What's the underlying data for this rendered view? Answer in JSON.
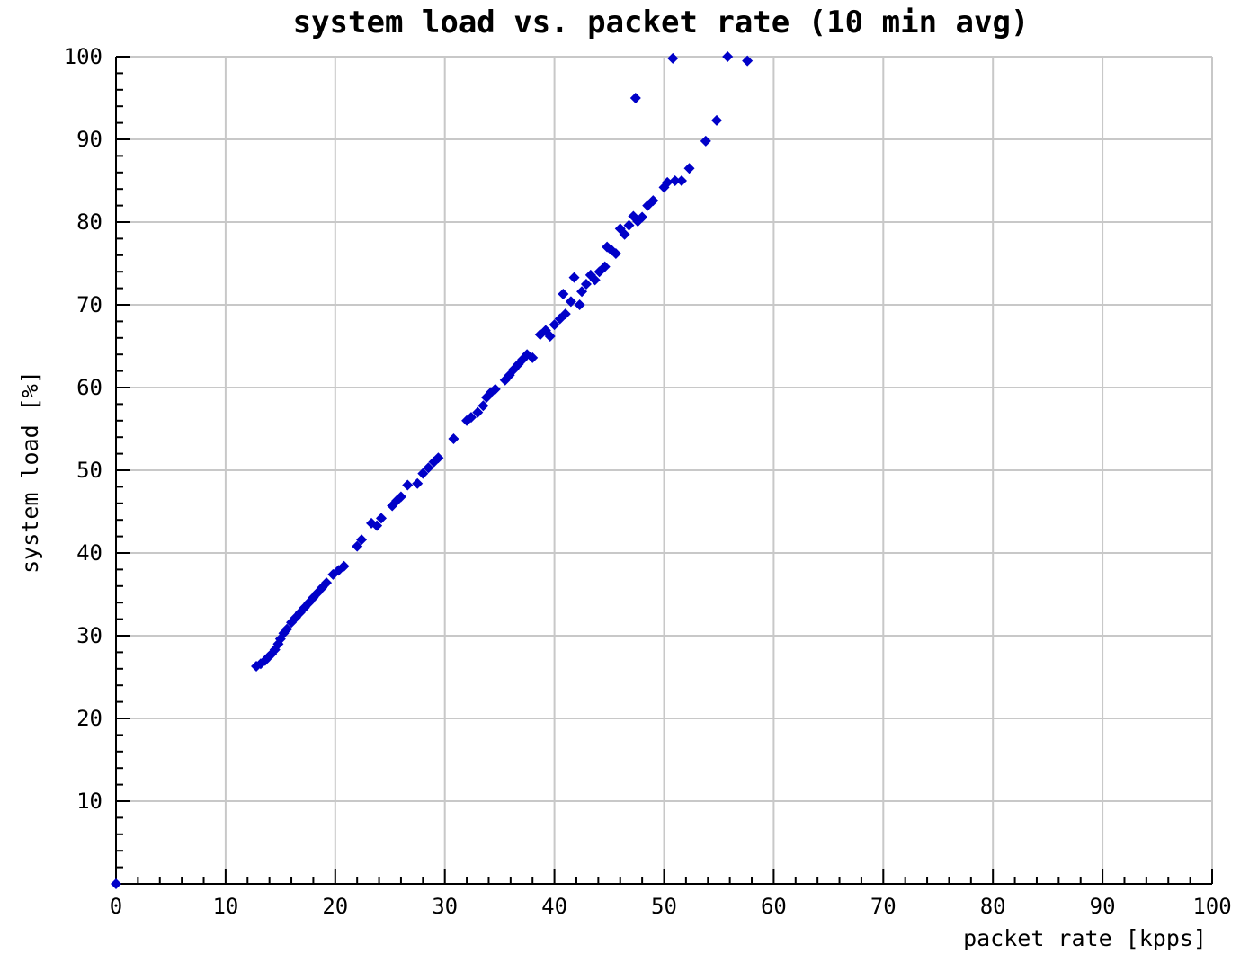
{
  "chart_data": {
    "type": "scatter",
    "title": "system load vs. packet rate (10 min avg)",
    "xlabel": "packet rate [kpps]",
    "ylabel": "system load [%]",
    "xlim": [
      0,
      100
    ],
    "ylim": [
      0,
      100
    ],
    "x_ticks": [
      0,
      10,
      20,
      30,
      40,
      50,
      60,
      70,
      80,
      90,
      100
    ],
    "y_ticks": [
      10,
      20,
      30,
      40,
      50,
      60,
      70,
      80,
      90,
      100
    ],
    "x_tick_labels": [
      "0",
      "10",
      "20",
      "30",
      "40",
      "50",
      "60",
      "70",
      "80",
      "90",
      "100"
    ],
    "y_tick_labels": [
      "10",
      "20",
      "30",
      "40",
      "50",
      "60",
      "70",
      "80",
      "90",
      "100"
    ],
    "grid": true,
    "marker_color": "#0000c8",
    "points": [
      {
        "x": 0,
        "y": 0
      },
      {
        "x": 12.8,
        "y": 26.3
      },
      {
        "x": 13.2,
        "y": 26.6
      },
      {
        "x": 13.6,
        "y": 27.0
      },
      {
        "x": 13.9,
        "y": 27.4
      },
      {
        "x": 14.2,
        "y": 27.8
      },
      {
        "x": 14.5,
        "y": 28.3
      },
      {
        "x": 14.8,
        "y": 29.0
      },
      {
        "x": 15.0,
        "y": 29.6
      },
      {
        "x": 15.3,
        "y": 30.3
      },
      {
        "x": 15.6,
        "y": 30.8
      },
      {
        "x": 16.0,
        "y": 31.6
      },
      {
        "x": 16.4,
        "y": 32.2
      },
      {
        "x": 16.8,
        "y": 32.8
      },
      {
        "x": 17.2,
        "y": 33.4
      },
      {
        "x": 17.6,
        "y": 34.0
      },
      {
        "x": 18.0,
        "y": 34.6
      },
      {
        "x": 18.4,
        "y": 35.2
      },
      {
        "x": 18.8,
        "y": 35.8
      },
      {
        "x": 19.2,
        "y": 36.4
      },
      {
        "x": 19.8,
        "y": 37.4
      },
      {
        "x": 20.3,
        "y": 37.9
      },
      {
        "x": 20.8,
        "y": 38.4
      },
      {
        "x": 22.0,
        "y": 40.8
      },
      {
        "x": 22.4,
        "y": 41.6
      },
      {
        "x": 23.3,
        "y": 43.6
      },
      {
        "x": 23.8,
        "y": 43.3
      },
      {
        "x": 24.2,
        "y": 44.2
      },
      {
        "x": 25.2,
        "y": 45.7
      },
      {
        "x": 25.6,
        "y": 46.3
      },
      {
        "x": 26.0,
        "y": 46.8
      },
      {
        "x": 26.6,
        "y": 48.2
      },
      {
        "x": 27.5,
        "y": 48.4
      },
      {
        "x": 28.0,
        "y": 49.6
      },
      {
        "x": 28.5,
        "y": 50.3
      },
      {
        "x": 29.0,
        "y": 51.0
      },
      {
        "x": 29.4,
        "y": 51.5
      },
      {
        "x": 30.8,
        "y": 53.8
      },
      {
        "x": 32.0,
        "y": 56.0
      },
      {
        "x": 32.4,
        "y": 56.4
      },
      {
        "x": 33.0,
        "y": 57.0
      },
      {
        "x": 33.5,
        "y": 57.8
      },
      {
        "x": 33.8,
        "y": 58.8
      },
      {
        "x": 34.2,
        "y": 59.4
      },
      {
        "x": 34.6,
        "y": 59.8
      },
      {
        "x": 35.5,
        "y": 60.9
      },
      {
        "x": 35.9,
        "y": 61.5
      },
      {
        "x": 36.3,
        "y": 62.2
      },
      {
        "x": 36.7,
        "y": 62.8
      },
      {
        "x": 37.1,
        "y": 63.4
      },
      {
        "x": 37.5,
        "y": 64.0
      },
      {
        "x": 38.0,
        "y": 63.6
      },
      {
        "x": 38.7,
        "y": 66.4
      },
      {
        "x": 39.2,
        "y": 66.9
      },
      {
        "x": 39.6,
        "y": 66.2
      },
      {
        "x": 40.0,
        "y": 67.6
      },
      {
        "x": 40.5,
        "y": 68.3
      },
      {
        "x": 41.0,
        "y": 68.9
      },
      {
        "x": 40.8,
        "y": 71.3
      },
      {
        "x": 41.5,
        "y": 70.4
      },
      {
        "x": 41.8,
        "y": 73.3
      },
      {
        "x": 42.3,
        "y": 70.0
      },
      {
        "x": 42.5,
        "y": 71.6
      },
      {
        "x": 42.9,
        "y": 72.5
      },
      {
        "x": 43.3,
        "y": 73.6
      },
      {
        "x": 43.7,
        "y": 73.0
      },
      {
        "x": 44.1,
        "y": 74.0
      },
      {
        "x": 44.6,
        "y": 74.6
      },
      {
        "x": 44.8,
        "y": 77.0
      },
      {
        "x": 45.2,
        "y": 76.6
      },
      {
        "x": 45.6,
        "y": 76.2
      },
      {
        "x": 46.0,
        "y": 79.2
      },
      {
        "x": 46.4,
        "y": 78.5
      },
      {
        "x": 46.8,
        "y": 79.6
      },
      {
        "x": 47.2,
        "y": 80.7
      },
      {
        "x": 47.6,
        "y": 80.1
      },
      {
        "x": 48.0,
        "y": 80.6
      },
      {
        "x": 48.5,
        "y": 82.0
      },
      {
        "x": 49.0,
        "y": 82.6
      },
      {
        "x": 50.0,
        "y": 84.2
      },
      {
        "x": 50.3,
        "y": 84.8
      },
      {
        "x": 51.0,
        "y": 85.0
      },
      {
        "x": 51.6,
        "y": 85.0
      },
      {
        "x": 52.3,
        "y": 86.5
      },
      {
        "x": 53.8,
        "y": 89.8
      },
      {
        "x": 54.8,
        "y": 92.3
      },
      {
        "x": 47.4,
        "y": 95.0
      },
      {
        "x": 50.8,
        "y": 99.8
      },
      {
        "x": 55.8,
        "y": 100.0
      },
      {
        "x": 57.6,
        "y": 99.5
      }
    ]
  }
}
